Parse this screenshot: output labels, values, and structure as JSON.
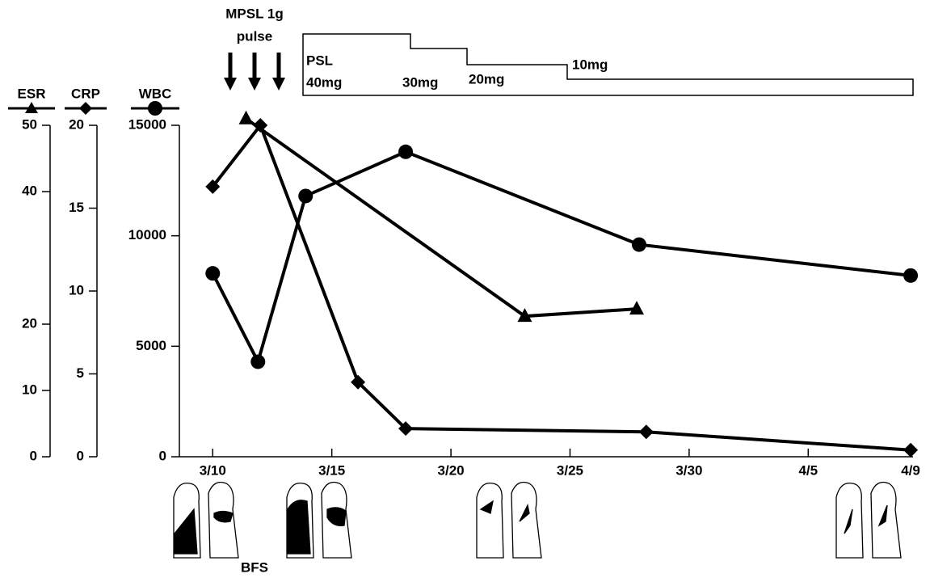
{
  "chart_data": {
    "type": "line",
    "annotations": {
      "pulse_title": "MPSL 1g",
      "pulse_sub": "pulse",
      "psl": "PSL",
      "doses": [
        "40mg",
        "30mg",
        "20mg",
        "10mg"
      ],
      "bfs": "BFS"
    },
    "xlim": [
      -1.4,
      29.4
    ],
    "xticks": [
      {
        "value": 0,
        "label": "3/10"
      },
      {
        "value": 5,
        "label": "3/15"
      },
      {
        "value": 10,
        "label": "3/20"
      },
      {
        "value": 15,
        "label": "3/25"
      },
      {
        "value": 20,
        "label": "3/30"
      },
      {
        "value": 25,
        "label": "4/5"
      },
      {
        "value": 29.3,
        "label": "4/9"
      }
    ],
    "axes": [
      {
        "ylim": [
          0,
          50
        ],
        "yticks": [
          0,
          10,
          20,
          40,
          50
        ]
      },
      {
        "ylim": [
          0,
          20
        ],
        "yticks": [
          0,
          5,
          10,
          15,
          20
        ]
      },
      {
        "ylim": [
          0,
          15000
        ],
        "yticks": [
          0,
          5000,
          10000,
          15000
        ]
      }
    ],
    "series": [
      {
        "name": "ESR",
        "marker": "triangle",
        "color": "#000000",
        "axis": 0,
        "x": [
          1.4,
          13.1,
          17.8
        ],
        "values": [
          51,
          21.2,
          22.3
        ]
      },
      {
        "name": "CRP",
        "marker": "diamond",
        "color": "#000000",
        "axis": 1,
        "x": [
          0,
          2,
          6.1,
          8.1,
          18.2,
          29.3
        ],
        "values": [
          16.3,
          20,
          4.5,
          1.7,
          1.5,
          0.4
        ]
      },
      {
        "name": "WBC",
        "marker": "circle",
        "color": "#000000",
        "axis": 2,
        "x": [
          0,
          1.9,
          3.9,
          8.1,
          17.9,
          29.3
        ],
        "values": [
          8300,
          4300,
          11800,
          13800,
          9600,
          8200
        ]
      }
    ]
  }
}
